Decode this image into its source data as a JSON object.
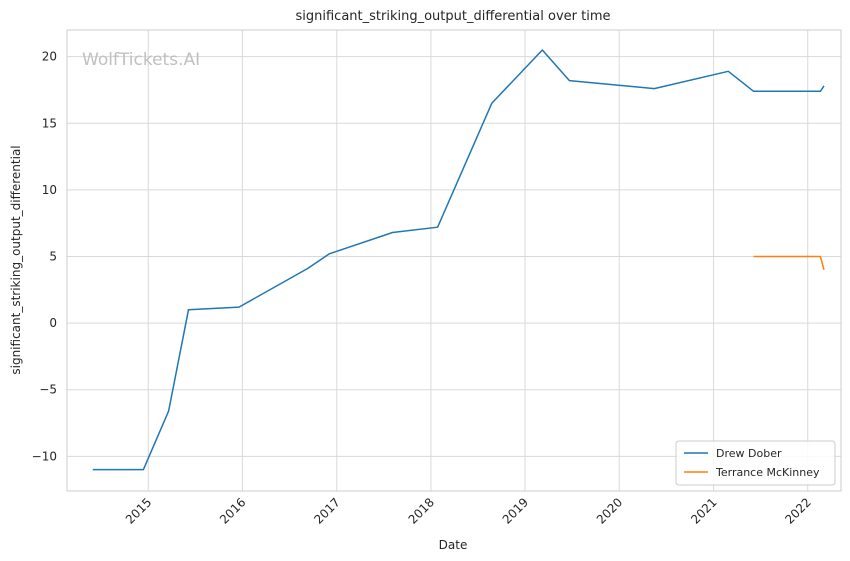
{
  "chart_data": {
    "type": "line",
    "title": "significant_striking_output_differential over time",
    "xlabel": "Date",
    "ylabel": "significant_striking_output_differential",
    "watermark": "WolfTickets.AI",
    "xlim": [
      "2014-02-20",
      "2022-05-10"
    ],
    "ylim": [
      -12.6,
      22.0
    ],
    "x_ticks": [
      "2015-01-01",
      "2016-01-01",
      "2017-01-01",
      "2018-01-01",
      "2019-01-01",
      "2020-01-01",
      "2021-01-01",
      "2022-01-01"
    ],
    "x_tick_labels": [
      "2015",
      "2016",
      "2017",
      "2018",
      "2019",
      "2020",
      "2021",
      "2022"
    ],
    "y_ticks": [
      -10,
      -5,
      0,
      5,
      10,
      15,
      20
    ],
    "y_tick_labels": [
      "−10",
      "−5",
      "0",
      "5",
      "10",
      "15",
      "20"
    ],
    "grid": true,
    "legend_position": "bottom-right",
    "series": [
      {
        "name": "Drew Dober",
        "color": "#1f77b4",
        "points": [
          [
            "2014-05-31",
            -11.0
          ],
          [
            "2014-12-13",
            -11.0
          ],
          [
            "2015-03-21",
            -6.6
          ],
          [
            "2015-06-06",
            1.0
          ],
          [
            "2015-12-19",
            1.2
          ],
          [
            "2016-09-10",
            4.1
          ],
          [
            "2016-12-03",
            5.2
          ],
          [
            "2017-08-05",
            6.8
          ],
          [
            "2018-01-27",
            7.2
          ],
          [
            "2018-08-25",
            16.5
          ],
          [
            "2019-03-09",
            20.5
          ],
          [
            "2019-06-22",
            18.2
          ],
          [
            "2020-05-16",
            17.6
          ],
          [
            "2021-02-27",
            18.9
          ],
          [
            "2021-06-05",
            17.4
          ],
          [
            "2022-02-19",
            17.4
          ],
          [
            "2022-03-05",
            17.8
          ]
        ]
      },
      {
        "name": "Terrance McKinney",
        "color": "#ff7f0e",
        "points": [
          [
            "2021-06-05",
            5.0
          ],
          [
            "2022-02-19",
            5.0
          ],
          [
            "2022-03-05",
            4.0
          ]
        ]
      }
    ]
  }
}
